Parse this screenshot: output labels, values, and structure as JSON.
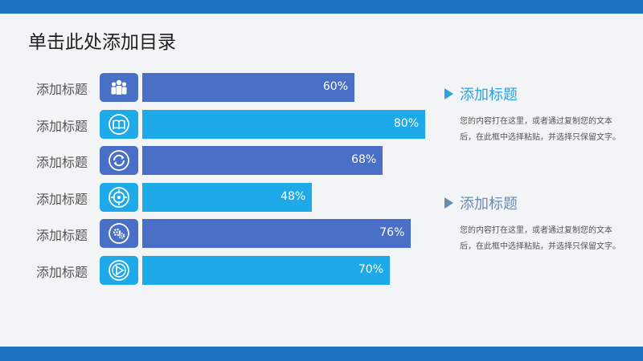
{
  "title": "单击此处添加目录",
  "colors": {
    "band": "#1e73be",
    "bar_dark": "#4a6fc7",
    "bar_light": "#1eaae8",
    "info_title_1": "#2aa3de",
    "info_title_2": "#6b8bb0",
    "arrow_1": "#2aa3de",
    "arrow_2": "#6b8bb0"
  },
  "chart_data": {
    "type": "bar",
    "orientation": "horizontal",
    "categories": [
      "添加标题",
      "添加标题",
      "添加标题",
      "添加标题",
      "添加标题",
      "添加标题"
    ],
    "values": [
      60,
      80,
      68,
      48,
      76,
      70
    ],
    "value_labels": [
      "60%",
      "80%",
      "68%",
      "48%",
      "76%",
      "70%"
    ],
    "xlim": [
      0,
      100
    ],
    "grid": false,
    "icons": [
      "team-icon",
      "book-icon",
      "cycle-icon",
      "target-icon",
      "gears-icon",
      "compass-icon"
    ],
    "bar_colors": [
      "#4a6fc7",
      "#1eaae8",
      "#4a6fc7",
      "#1eaae8",
      "#4a6fc7",
      "#1eaae8"
    ]
  },
  "info_blocks": [
    {
      "title": "添加标题",
      "text": "您的内容打在这里，或者通过复制您的文本后，在此框中选择粘贴，并选择只保留文字。"
    },
    {
      "title": "添加标题",
      "text": "您的内容打在这里，或者通过复制您的文本后，在此框中选择粘贴，并选择只保留文字。"
    }
  ]
}
